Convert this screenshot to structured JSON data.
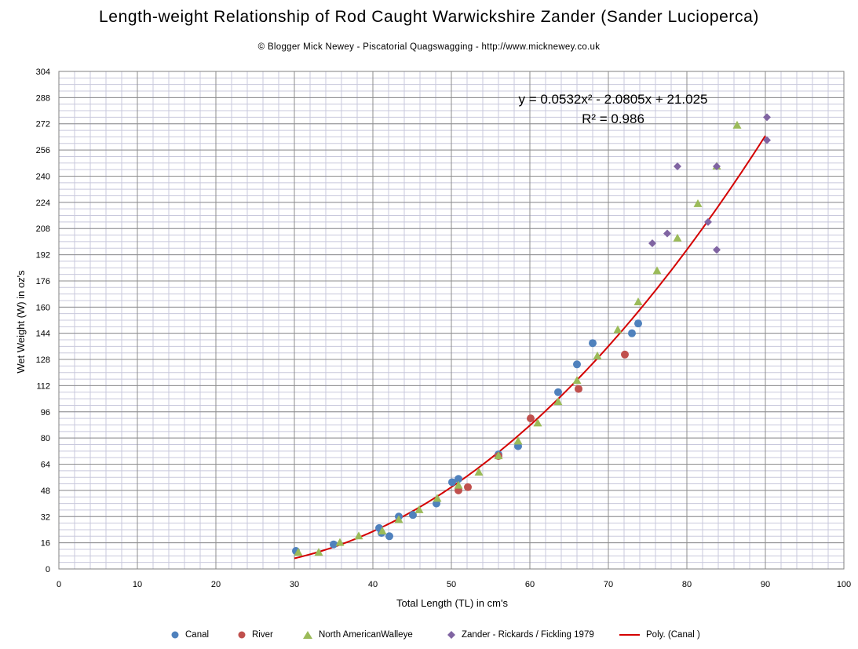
{
  "chart_data": {
    "type": "scatter",
    "title": "Length-weight Relationship of Rod Caught Warwickshire Zander (Sander Lucioperca)",
    "subtitle": "© Blogger Mick Newey - Piscatorial Quagswagging - http://www.micknewey.co.uk",
    "xlabel": "Total Length  (TL) in cm's",
    "ylabel": "Wet Weight  (W) in oz's",
    "xlim": [
      0,
      100
    ],
    "ylim": [
      0,
      304
    ],
    "x_ticks": [
      "0",
      "10",
      "20",
      "30",
      "40",
      "50",
      "60",
      "70",
      "80",
      "90",
      "100"
    ],
    "y_ticks": [
      "0",
      "16",
      "32",
      "48",
      "64",
      "80",
      "96",
      "112",
      "128",
      "144",
      "160",
      "176",
      "192",
      "208",
      "224",
      "240",
      "256",
      "272",
      "288",
      "304"
    ],
    "grid": true,
    "legend_position": "bottom",
    "equation": "y = 0.0532x² - 2.0805x + 21.025",
    "r_squared": "R² = 0.986",
    "series": [
      {
        "name": "Canal",
        "marker": "circle",
        "color": "#4f81bd",
        "points": [
          [
            30.2,
            11
          ],
          [
            35,
            15
          ],
          [
            40.8,
            25
          ],
          [
            41.1,
            22
          ],
          [
            42.1,
            20
          ],
          [
            43.3,
            32
          ],
          [
            45.1,
            33
          ],
          [
            48.1,
            40
          ],
          [
            50.1,
            53
          ],
          [
            50.9,
            55
          ],
          [
            56,
            70
          ],
          [
            58.5,
            75
          ],
          [
            63.6,
            108
          ],
          [
            66,
            125
          ],
          [
            68,
            138
          ],
          [
            73,
            144
          ],
          [
            73.8,
            150
          ]
        ]
      },
      {
        "name": "River",
        "marker": "circle",
        "color": "#c0504d",
        "points": [
          [
            50.9,
            48
          ],
          [
            52.1,
            50
          ],
          [
            56,
            69
          ],
          [
            60.1,
            92
          ],
          [
            66.2,
            110
          ],
          [
            72.1,
            131
          ]
        ]
      },
      {
        "name": "North AmericanWalleye",
        "marker": "triangle",
        "color": "#9bbb59",
        "points": [
          [
            30.5,
            10
          ],
          [
            33.1,
            10
          ],
          [
            35.8,
            16
          ],
          [
            38.2,
            20
          ],
          [
            41.2,
            23
          ],
          [
            43.3,
            30
          ],
          [
            45.9,
            36
          ],
          [
            48.2,
            43
          ],
          [
            50.9,
            51
          ],
          [
            53.5,
            59
          ],
          [
            56,
            69
          ],
          [
            58.5,
            78
          ],
          [
            61,
            89
          ],
          [
            63.6,
            102
          ],
          [
            66,
            115
          ],
          [
            68.6,
            130
          ],
          [
            71.2,
            146
          ],
          [
            73.8,
            163
          ],
          [
            76.2,
            182
          ],
          [
            78.8,
            202
          ],
          [
            81.4,
            223
          ],
          [
            83.8,
            246
          ],
          [
            86.4,
            271
          ]
        ]
      },
      {
        "name": "Zander - Rickards / Fickling 1979",
        "marker": "diamond",
        "color": "#8064a2",
        "points": [
          [
            75.6,
            199
          ],
          [
            77.5,
            205
          ],
          [
            78.8,
            246
          ],
          [
            82.7,
            212
          ],
          [
            83.8,
            195
          ],
          [
            83.8,
            246
          ],
          [
            90.2,
            262
          ],
          [
            90.2,
            276
          ]
        ]
      },
      {
        "name": "Poly. (Canal )",
        "marker": "line",
        "color": "#d40000",
        "fit": {
          "type": "polynomial",
          "a": 0.0532,
          "b": -2.0805,
          "c": 21.025,
          "from": 30,
          "to": 90
        }
      }
    ]
  }
}
